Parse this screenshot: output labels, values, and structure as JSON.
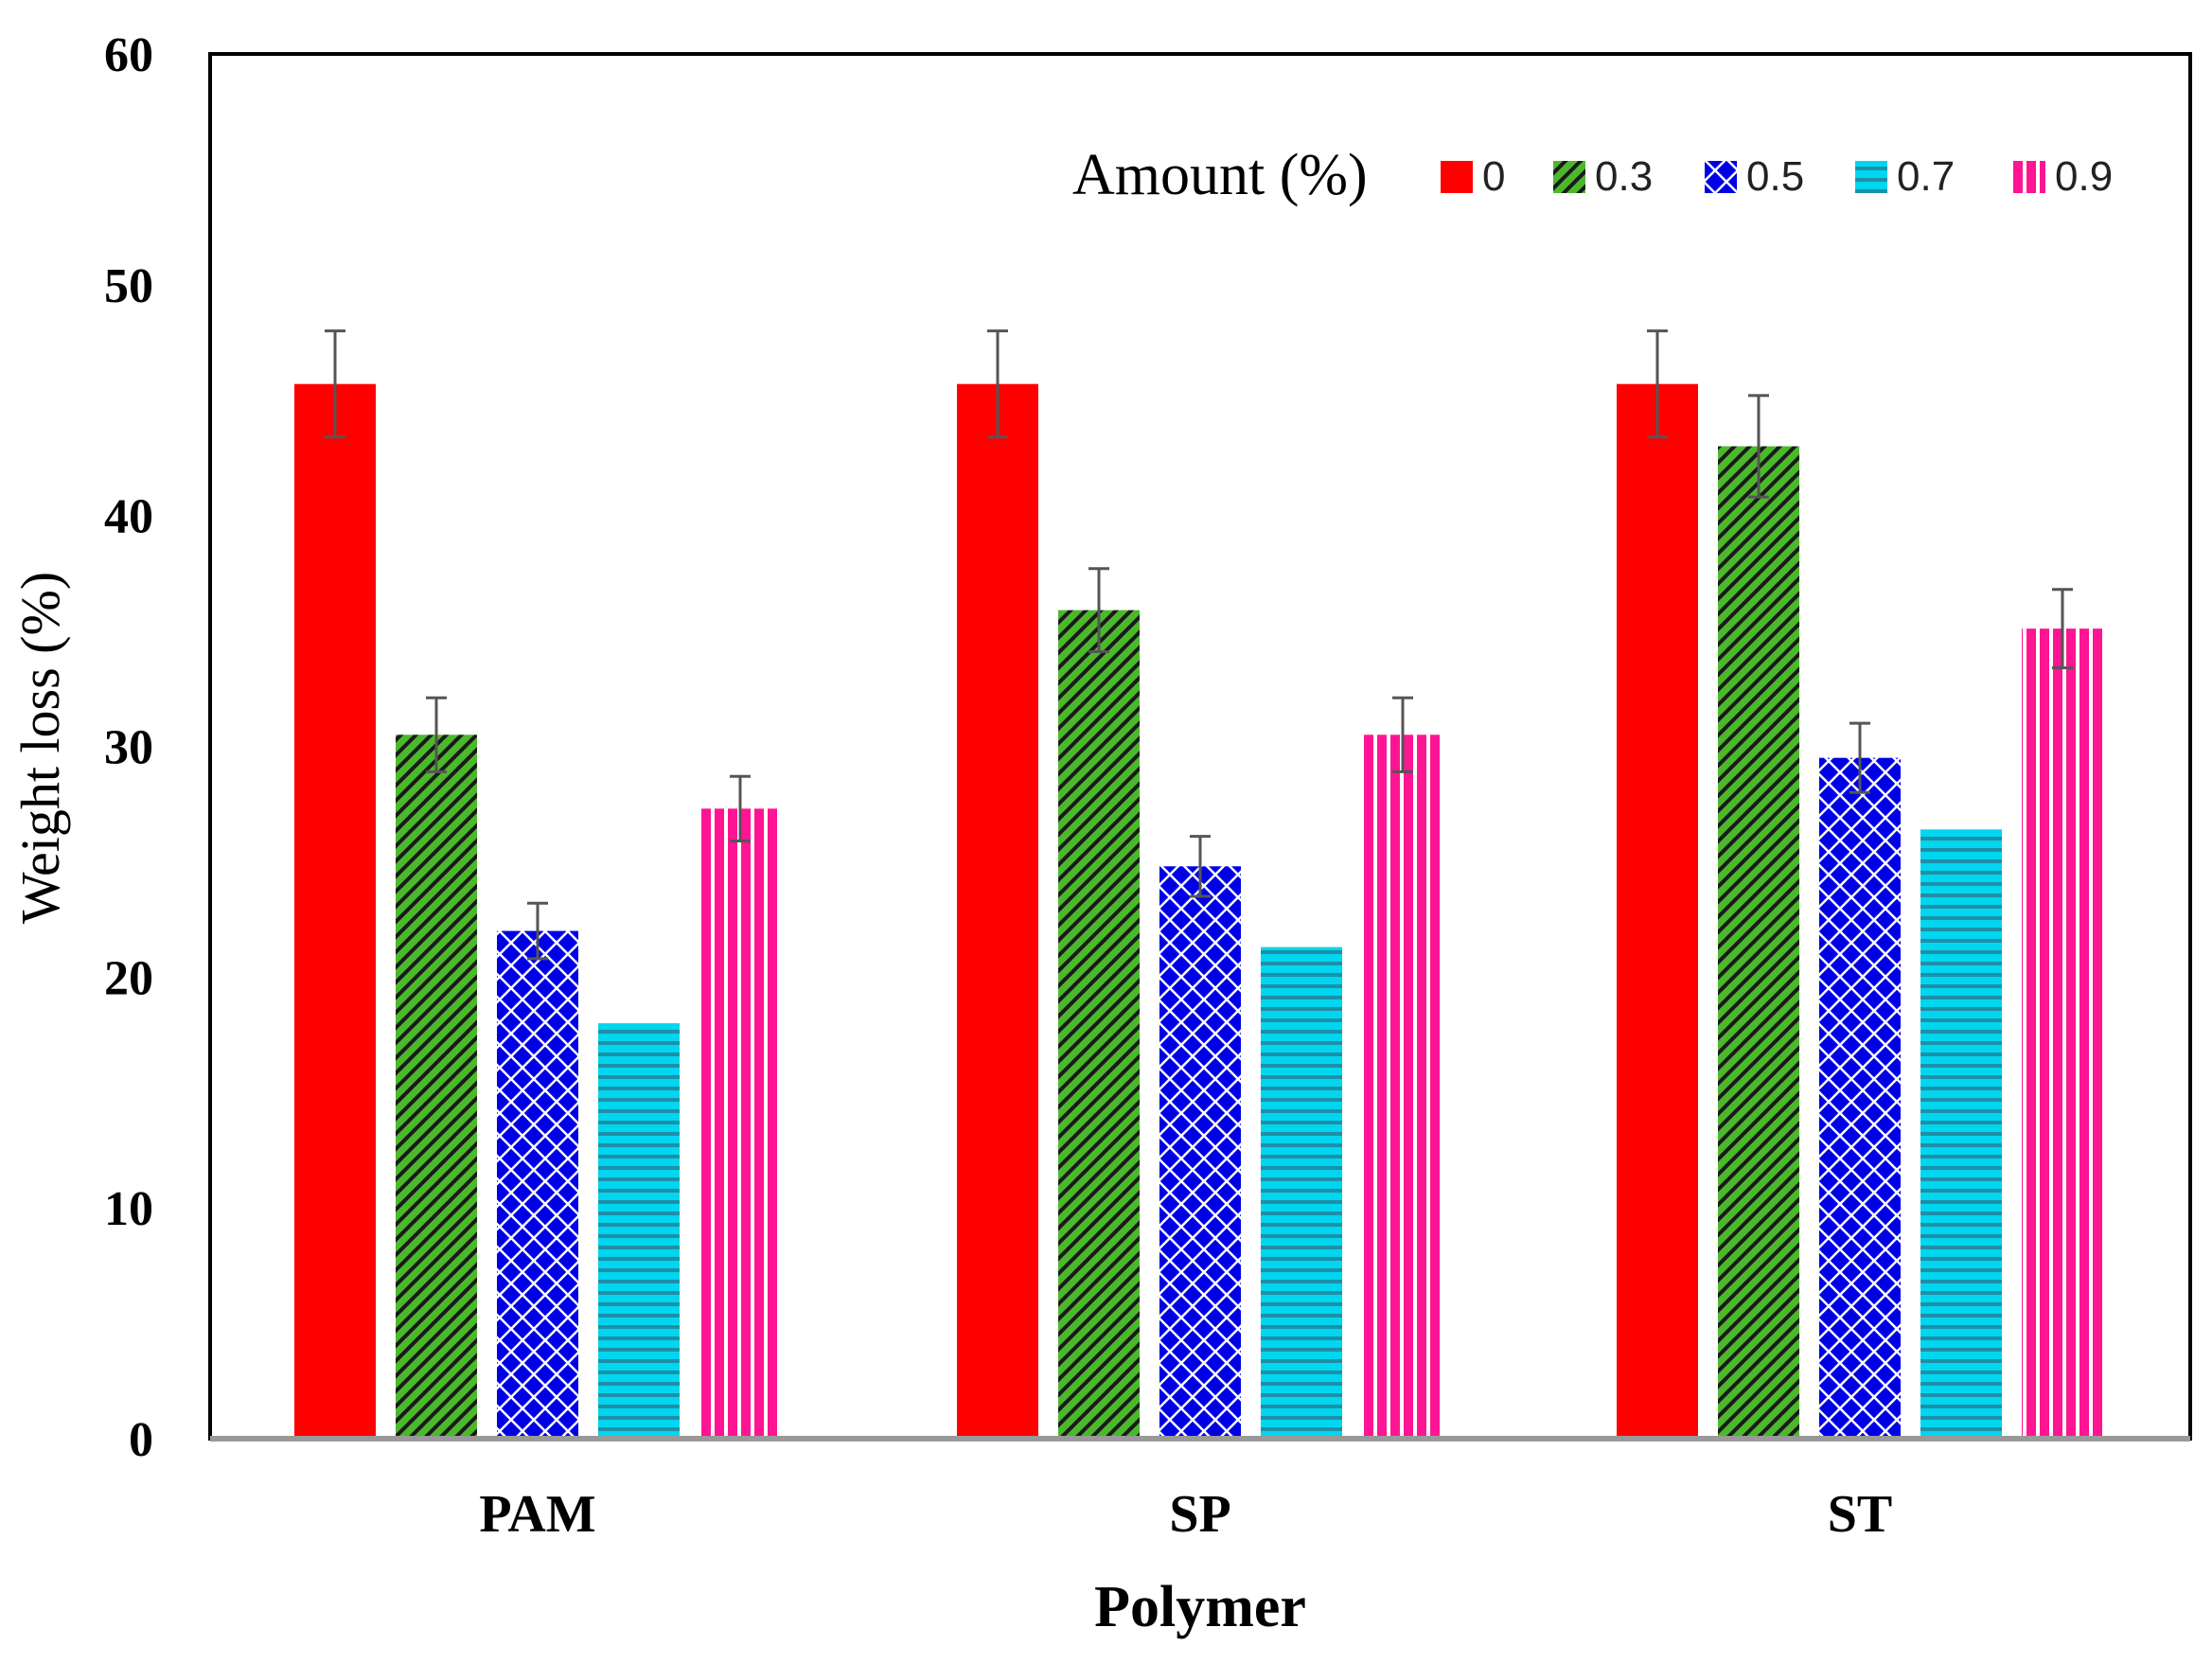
{
  "chart_data": {
    "type": "bar",
    "title": "",
    "xlabel": "Polymer",
    "ylabel": "Weight loss (%)",
    "ylim": [
      0,
      60
    ],
    "yticks": [
      0,
      10,
      20,
      30,
      40,
      50,
      60
    ],
    "categories": [
      "PAM",
      "SP",
      "ST"
    ],
    "legend": {
      "title": "Amount (%)",
      "position": "top-right"
    },
    "series": [
      {
        "name": "0",
        "color": "#ff0000",
        "pattern": "solid",
        "values": [
          45.7,
          45.7,
          45.7
        ],
        "errors": [
          2.3,
          2.3,
          2.3
        ]
      },
      {
        "name": "0.3",
        "color": "#4cb82c",
        "pattern": "diagonal",
        "values": [
          30.5,
          35.9,
          43.0
        ],
        "errors": [
          1.6,
          1.8,
          2.2
        ]
      },
      {
        "name": "0.5",
        "color": "#0000e6",
        "pattern": "crosshatch",
        "values": [
          22.0,
          24.8,
          29.5
        ],
        "errors": [
          1.2,
          1.3,
          1.5
        ]
      },
      {
        "name": "0.7",
        "color": "#00d6f0",
        "pattern": "horizontal",
        "values": [
          18.0,
          21.3,
          26.4
        ],
        "errors": [
          0,
          0,
          0
        ]
      },
      {
        "name": "0.9",
        "color": "#ff1493",
        "pattern": "vertical",
        "values": [
          27.3,
          30.5,
          35.1
        ],
        "errors": [
          1.4,
          1.6,
          1.7
        ]
      }
    ]
  }
}
